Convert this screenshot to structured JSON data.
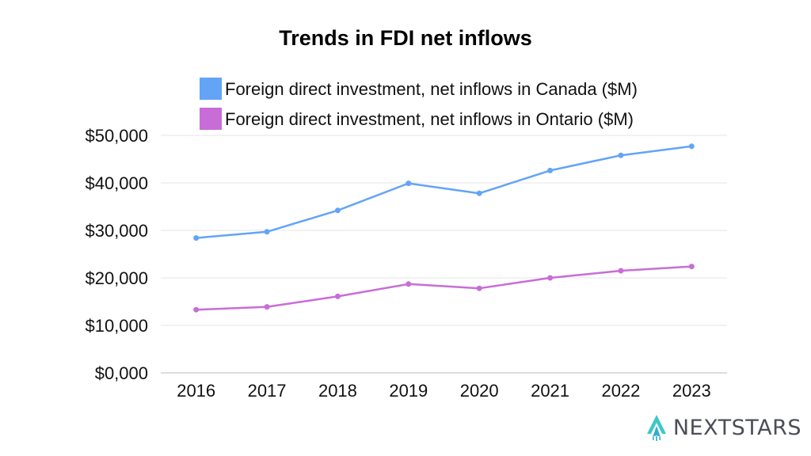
{
  "brand": {
    "name": "NEXTSTARS"
  },
  "chart_data": {
    "type": "line",
    "title": "Trends in FDI net inflows",
    "xlabel": "",
    "ylabel": "",
    "categories": [
      "2016",
      "2017",
      "2018",
      "2019",
      "2020",
      "2021",
      "2022",
      "2023"
    ],
    "series": [
      {
        "name": "Foreign direct investment, net inflows in Ontario ($M)",
        "color": "#c86dd7",
        "values": [
          13300,
          13900,
          16100,
          18700,
          17800,
          20000,
          21500,
          22400
        ]
      },
      {
        "name": "Foreign direct investment, net inflows in Canada ($M)",
        "color": "#63a4f7",
        "values": [
          28400,
          29700,
          34200,
          39900,
          37800,
          42600,
          45800,
          47700
        ]
      }
    ],
    "ylim": [
      0,
      50000
    ],
    "yticks": [
      "$0,000",
      "$10,000",
      "$20,000",
      "$30,000",
      "$40,000",
      "$50,000"
    ],
    "grid": true,
    "legend": "top"
  }
}
